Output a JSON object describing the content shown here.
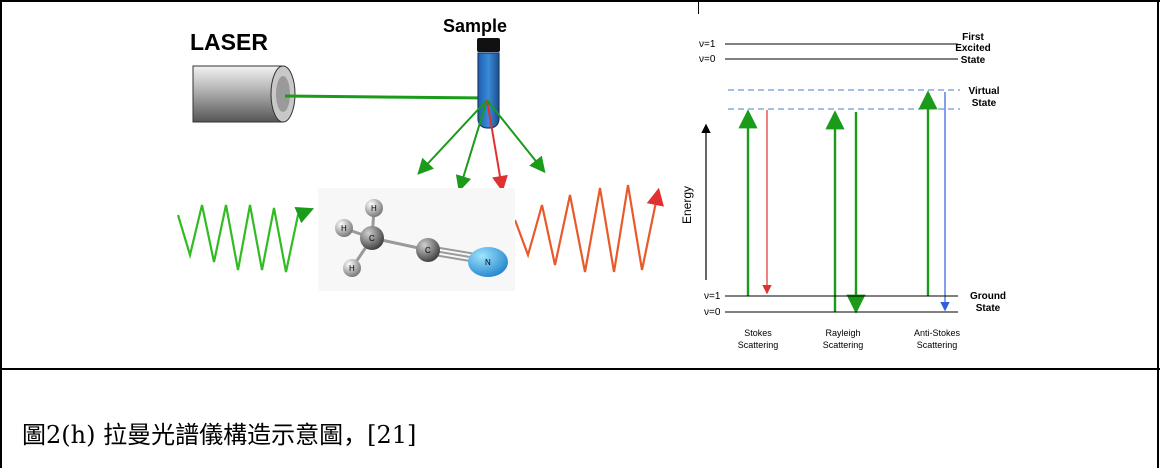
{
  "left_diagram": {
    "laser_label": "LASER",
    "sample_label": "Sample",
    "atom_labels": {
      "h1": "H",
      "h2": "H",
      "h3": "H",
      "c1": "C",
      "c2": "C",
      "n": "N"
    }
  },
  "energy_diagram": {
    "energy_axis_label": "Energy",
    "levels": {
      "excited_v1": "ν=1",
      "excited_v0": "ν=0",
      "ground_v1": "ν=1",
      "ground_v0": "ν=0"
    },
    "state_labels": {
      "first_excited": [
        "First",
        "Excited",
        "State"
      ],
      "virtual": [
        "Virtual",
        "State"
      ],
      "ground": [
        "Ground",
        "State"
      ]
    },
    "scattering_labels": {
      "stokes": [
        "Stokes",
        "Scattering"
      ],
      "rayleigh": [
        "Rayleigh",
        "Scattering"
      ],
      "anti_stokes": [
        "Anti-Stokes",
        "Scattering"
      ]
    },
    "colors": {
      "excitation": "#1a9b1a",
      "stokes": "#e03030",
      "anti_stokes": "#3060e0"
    }
  },
  "caption": "圖2(h) 拉曼光譜儀構造示意圖，[21]"
}
